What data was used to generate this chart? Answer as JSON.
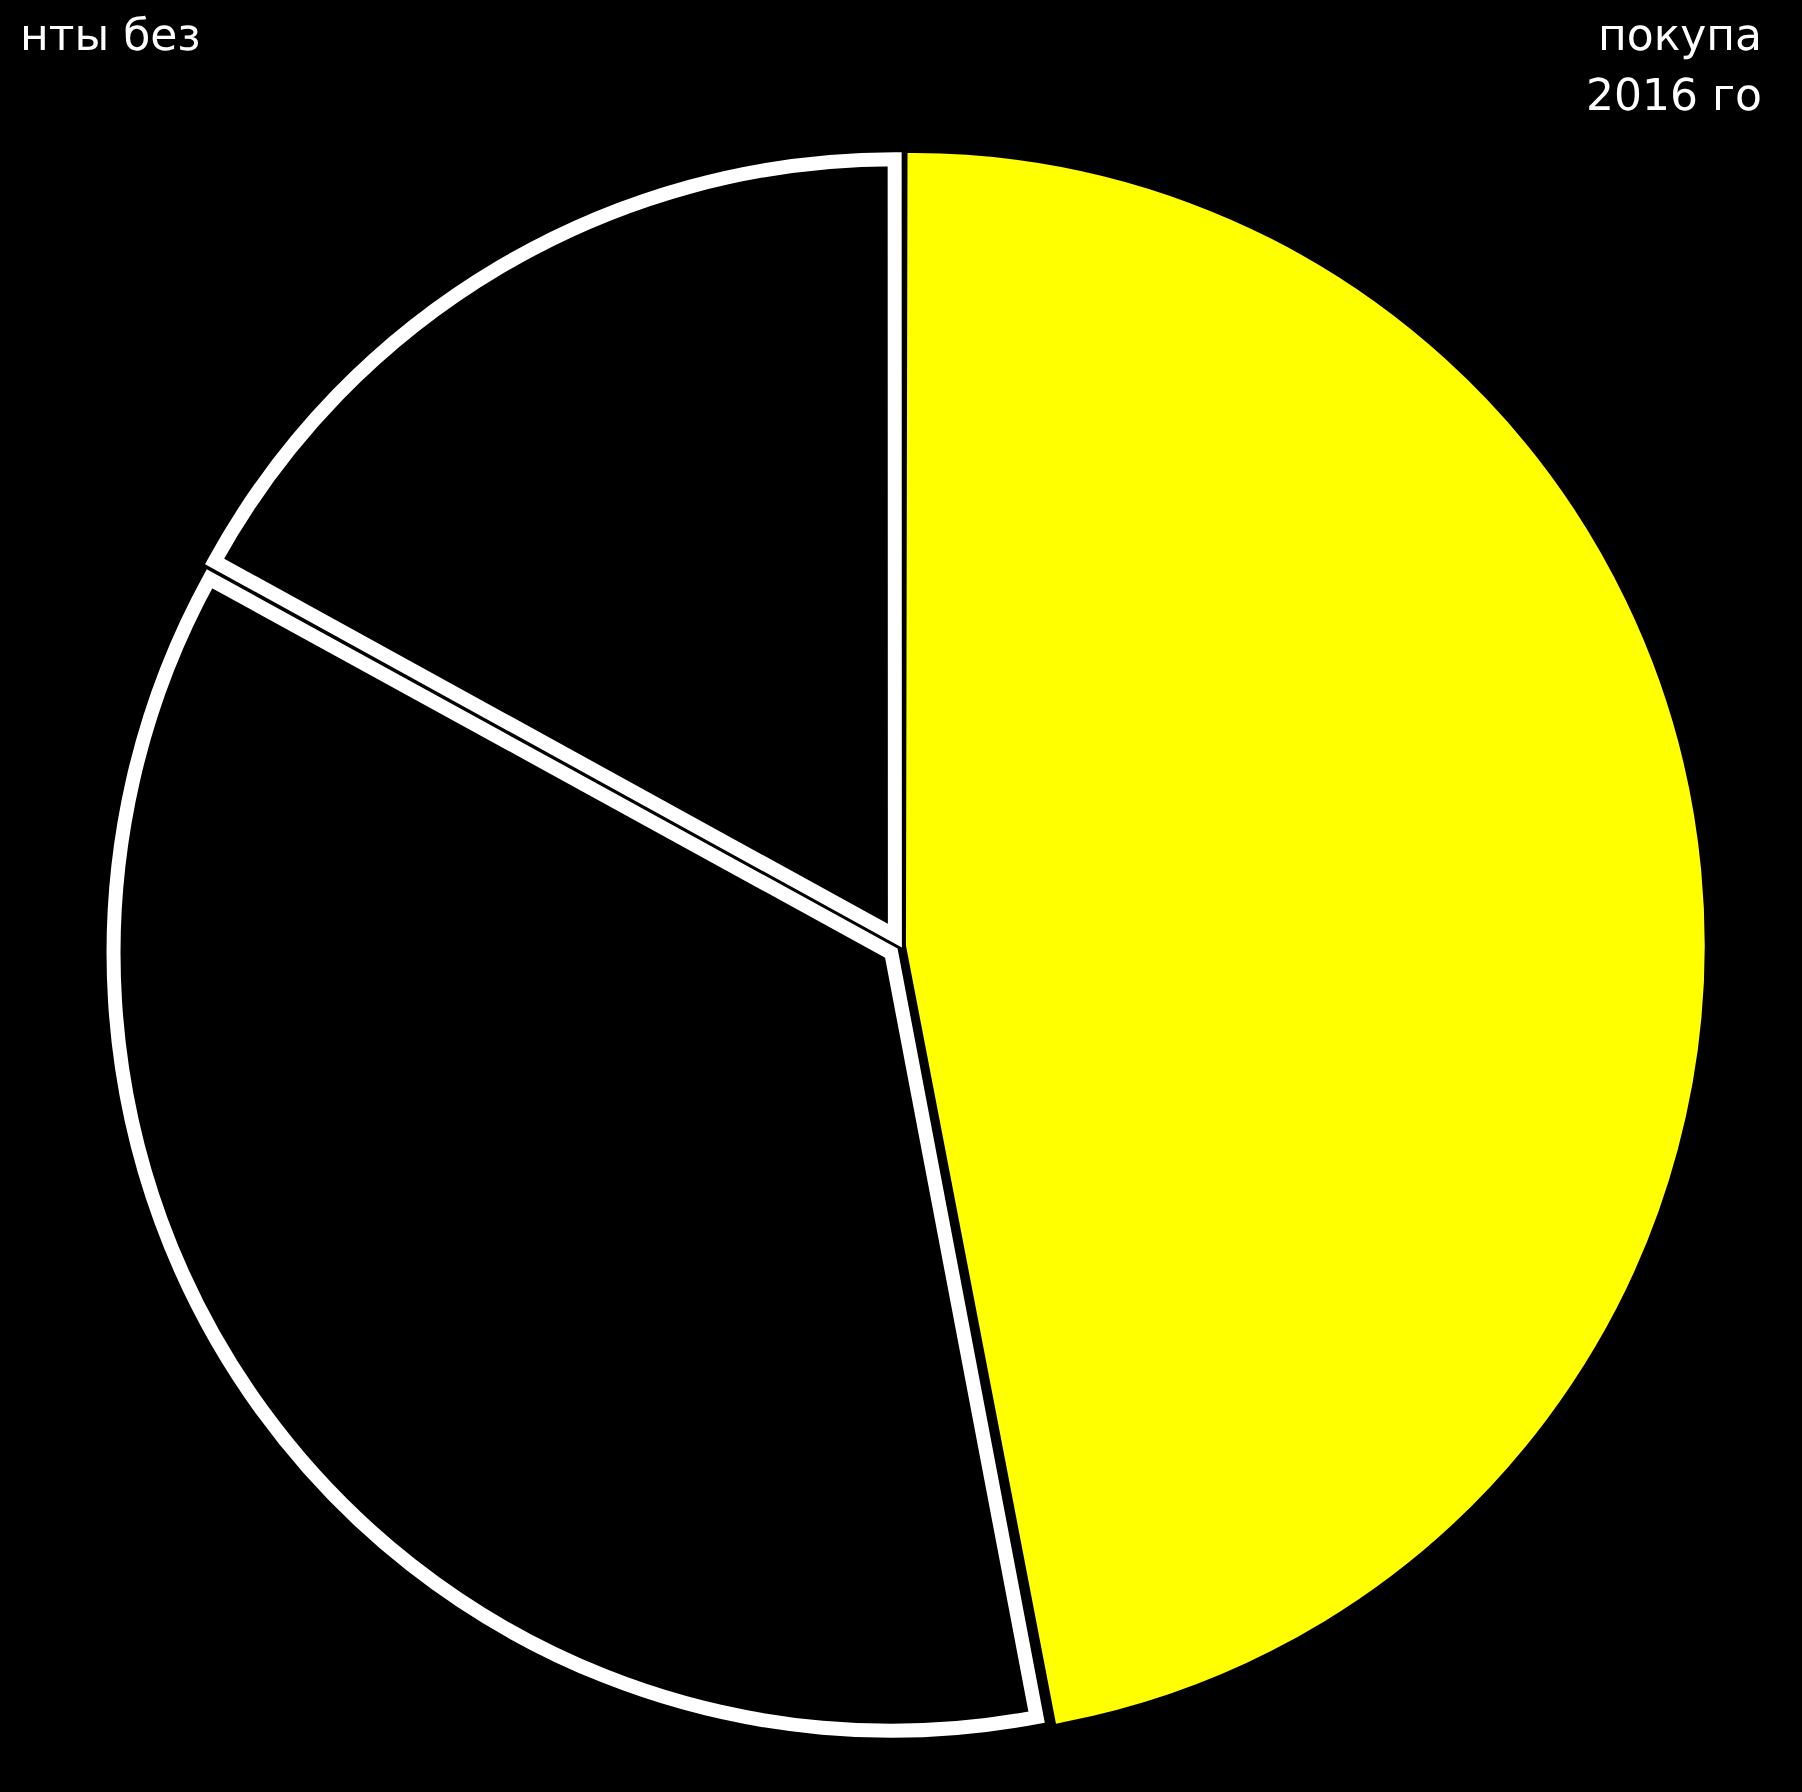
{
  "chart_data": {
    "type": "pie",
    "categories": [
      null,
      null,
      null
    ],
    "values": [
      47,
      36,
      17
    ],
    "colors": [
      "#ffff00",
      "#000000",
      "#000000"
    ],
    "annotations": [
      "нты без",
      "покупа",
      "2016 го"
    ],
    "legend": false
  }
}
